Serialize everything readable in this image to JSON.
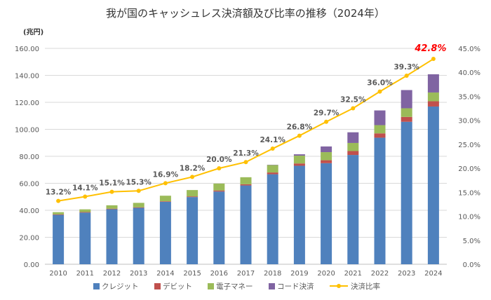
{
  "chart_data": {
    "type": "bar",
    "title": "我が国のキャッシュレス決済額及び比率の推移（2024年）",
    "ylabel": "(兆円)",
    "categories": [
      "2010",
      "2011",
      "2012",
      "2013",
      "2014",
      "2015",
      "2016",
      "2017",
      "2018",
      "2019",
      "2020",
      "2021",
      "2022",
      "2023",
      "2024"
    ],
    "y_ticks": [
      "0.00",
      "20.00",
      "40.00",
      "60.00",
      "80.00",
      "100.00",
      "120.00",
      "140.00",
      "160.00"
    ],
    "y2_ticks": [
      "0.0%",
      "5.0%",
      "10.0%",
      "15.0%",
      "20.0%",
      "25.0%",
      "30.0%",
      "35.0%",
      "40.0%",
      "45.0%"
    ],
    "ylim": [
      0,
      160
    ],
    "y2lim": [
      0,
      45
    ],
    "stacked": true,
    "grid": true,
    "legend_position": "bottom",
    "series": [
      {
        "name": "クレジット",
        "color": "#4f81bd",
        "values": [
          36.6,
          38.3,
          40.8,
          41.8,
          46.3,
          49.8,
          53.9,
          58.4,
          66.7,
          73.0,
          74.9,
          81.0,
          93.8,
          105.6,
          116.9
        ]
      },
      {
        "name": "デビット",
        "color": "#c0504d",
        "values": [
          0.4,
          0.4,
          0.4,
          0.4,
          0.4,
          0.5,
          0.8,
          0.9,
          1.3,
          1.7,
          2.2,
          2.9,
          3.2,
          3.6,
          3.9
        ]
      },
      {
        "name": "電子マネー",
        "color": "#9bbb59",
        "values": [
          1.6,
          2.0,
          2.5,
          3.3,
          4.1,
          4.7,
          5.1,
          5.2,
          5.5,
          5.8,
          6.0,
          6.0,
          6.1,
          6.4,
          6.5
        ]
      },
      {
        "name": "コード決済",
        "color": "#8064a2",
        "values": [
          0,
          0,
          0,
          0,
          0,
          0,
          0,
          0,
          0.2,
          1.0,
          4.2,
          7.9,
          10.9,
          13.5,
          13.5
        ]
      }
    ],
    "line_series": {
      "name": "決済比率",
      "color": "#ffc000",
      "values": [
        13.2,
        14.1,
        15.1,
        15.3,
        16.9,
        18.2,
        20.0,
        21.3,
        24.1,
        26.8,
        29.7,
        32.5,
        36.0,
        39.3,
        42.8
      ],
      "labels": [
        "13.2%",
        "14.1%",
        "15.1%",
        "15.3%",
        "16.9%",
        "18.2%",
        "20.0%",
        "21.3%",
        "24.1%",
        "26.8%",
        "29.7%",
        "32.5%",
        "36.0%",
        "39.3%",
        "42.8%"
      ],
      "highlight_last": true,
      "highlight_color": "#ff0000"
    }
  }
}
